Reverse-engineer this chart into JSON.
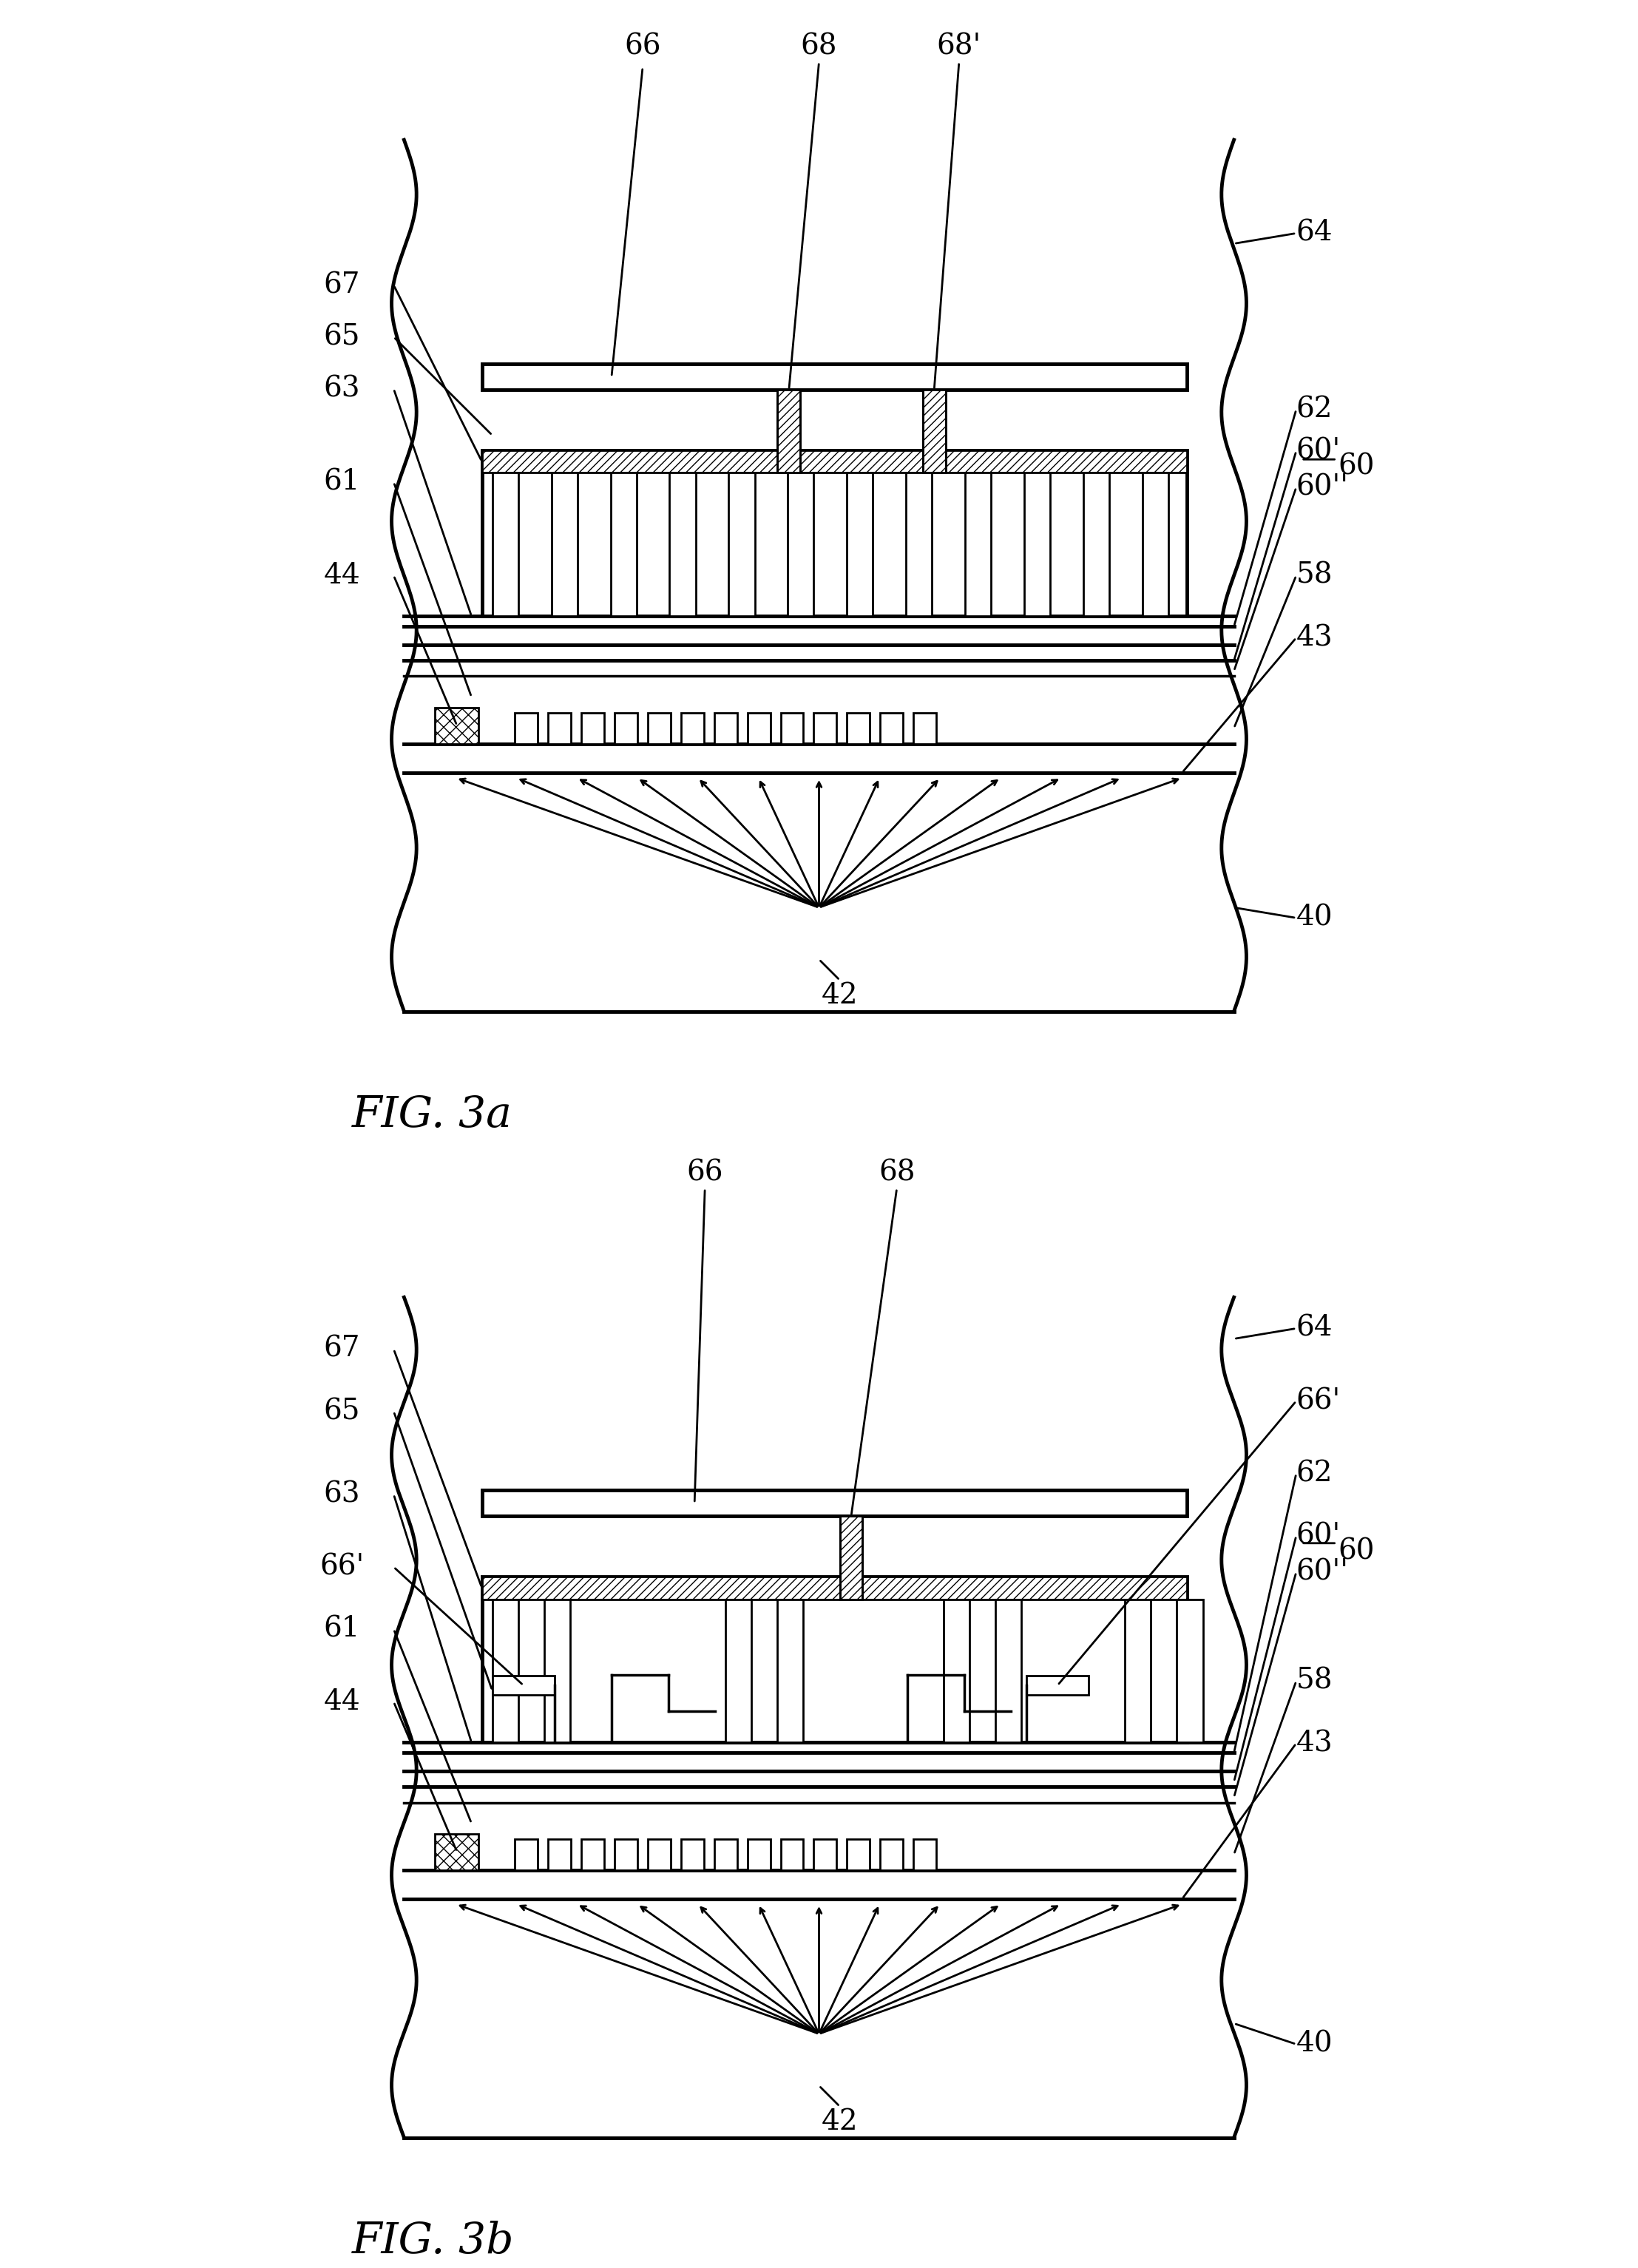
{
  "fig_width": 22.15,
  "fig_height": 30.67,
  "bg_color": "#ffffff",
  "line_color": "#000000",
  "hatch_color": "#000000",
  "fig3a_title": "FIG. 3a",
  "fig3b_title": "FIG. 3b",
  "font_size_label": 28,
  "font_size_title": 42,
  "lw_thick": 3.5,
  "lw_thin": 2.0,
  "lw_medium": 2.5
}
